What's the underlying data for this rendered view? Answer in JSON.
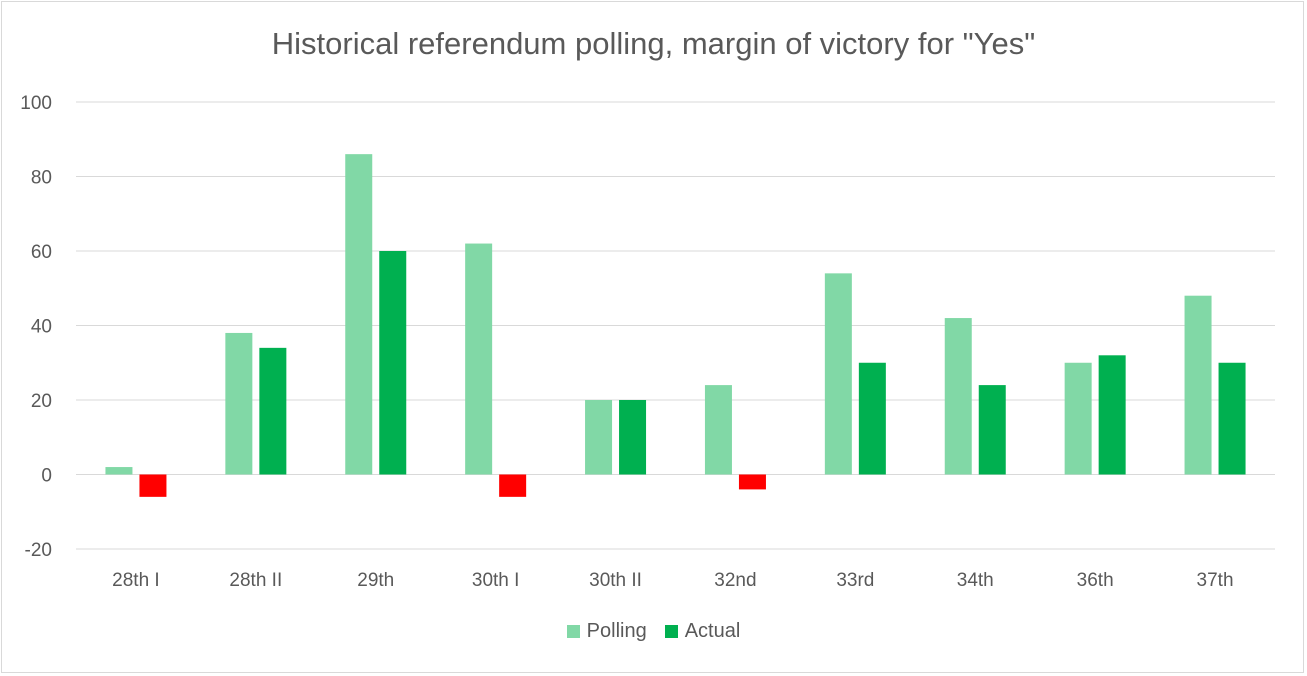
{
  "chart_data": {
    "type": "bar",
    "title": "Historical referendum polling, margin of victory for \"Yes\"",
    "xlabel": "",
    "ylabel": "",
    "categories": [
      "28th I",
      "28th II",
      "29th",
      "30th I",
      "30th II",
      "32nd",
      "33rd",
      "34th",
      "36th",
      "37th"
    ],
    "series": [
      {
        "name": "Polling",
        "values": [
          2,
          38,
          86,
          62,
          20,
          24,
          54,
          42,
          30,
          48
        ]
      },
      {
        "name": "Actual",
        "values": [
          -6,
          34,
          60,
          -6,
          20,
          -4,
          30,
          24,
          32,
          30
        ]
      }
    ],
    "ylim": [
      -20,
      100
    ],
    "yticks": [
      -20,
      0,
      20,
      40,
      60,
      80,
      100
    ],
    "grid": true,
    "legend_position": "bottom",
    "colors": {
      "polling": "#81d8a6",
      "actual": "#00b050",
      "negative": "#ff0000",
      "grid": "#d9d9d9",
      "text": "#595959"
    }
  }
}
